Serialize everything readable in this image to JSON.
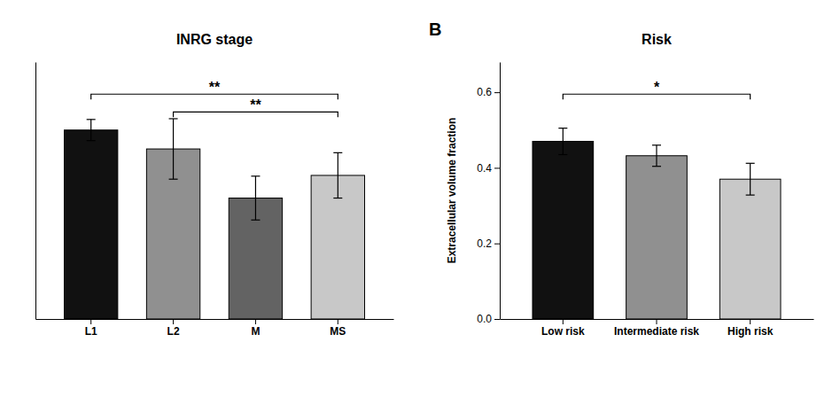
{
  "chart_data": [
    {
      "type": "bar",
      "title": "INRG stage",
      "categories": [
        "L1",
        "L2",
        "M",
        "MS"
      ],
      "values": [
        0.5,
        0.45,
        0.32,
        0.38
      ],
      "errors": [
        0.028,
        0.08,
        0.058,
        0.06
      ],
      "colors": [
        "#111111",
        "#909090",
        "#636363",
        "#c8c8c8"
      ],
      "ylim": [
        0,
        0.68
      ],
      "yticks": [],
      "tick_labels": "x",
      "grid": false,
      "significance": [
        {
          "from": "L1",
          "to": "MS",
          "y": 0.595,
          "label": "**"
        },
        {
          "from": "L2",
          "to": "MS",
          "y": 0.548,
          "label": "**"
        }
      ]
    },
    {
      "type": "bar",
      "title": "Risk",
      "panel_label": "B",
      "categories": [
        "Low risk",
        "Intermediate risk",
        "High risk"
      ],
      "values": [
        0.47,
        0.432,
        0.37
      ],
      "errors": [
        0.035,
        0.028,
        0.042
      ],
      "colors": [
        "#111111",
        "#909090",
        "#c8c8c8"
      ],
      "ylabel": "Extracellular volume fraction",
      "ylim": [
        0,
        0.68
      ],
      "yticks": [
        {
          "value": 0,
          "label": "0.0"
        },
        0.2,
        0.4,
        0.6
      ],
      "grid": false,
      "significance": [
        {
          "from": "Low risk",
          "to": "High risk",
          "y": 0.595,
          "label": "*"
        }
      ]
    }
  ]
}
